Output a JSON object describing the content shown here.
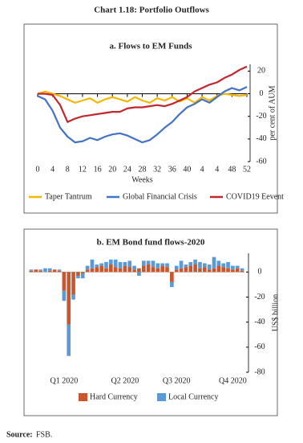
{
  "title": "Chart 1.18: Portfolio Outflows",
  "source_label": "Source:",
  "source": "FSB.",
  "chart_data": [
    {
      "type": "line",
      "title": "a. Flows to EM Funds",
      "x_label": "Weeks",
      "y_label": "per cent of AUM",
      "x": [
        0,
        2,
        4,
        6,
        8,
        10,
        12,
        14,
        16,
        18,
        20,
        22,
        24,
        26,
        28,
        30,
        32,
        34,
        36,
        38,
        40,
        42,
        44,
        46,
        48,
        50,
        52,
        54,
        56
      ],
      "xlim": [
        0,
        56
      ],
      "xticks": [
        0,
        4,
        8,
        12,
        16,
        20,
        24,
        28,
        32,
        36,
        40,
        {
          "value": 44,
          "label": "4"
        },
        {
          "value": 48,
          "label": "4"
        },
        {
          "value": 52,
          "label": "48"
        },
        {
          "value": 56,
          "label": "52"
        }
      ],
      "ylim": [
        -60,
        26
      ],
      "yticks": [
        20,
        0,
        -20,
        -40,
        -60
      ],
      "legend": "bottom",
      "series": [
        {
          "name": "Taper Tantrum",
          "color": "#f5b800",
          "values": [
            0,
            2,
            0,
            -2,
            -5,
            -8,
            -6,
            -4,
            -8,
            -5,
            -3,
            -5,
            -7,
            -3,
            -6,
            -8,
            -4,
            -6,
            -3,
            -7,
            -4,
            -8,
            -3,
            -6,
            -2,
            0,
            -1,
            -2,
            -1
          ]
        },
        {
          "name": "Global Financial Crisis",
          "color": "#4472c4",
          "values": [
            -2,
            -5,
            -15,
            -30,
            -38,
            -43,
            -42,
            -39,
            -41,
            -38,
            -36,
            -35,
            -37,
            -40,
            -43,
            -41,
            -36,
            -30,
            -25,
            -18,
            -12,
            -9,
            -5,
            -8,
            -3,
            2,
            5,
            3,
            6
          ]
        },
        {
          "name": "COVID19 Eevent",
          "color": "#c0282d",
          "values": [
            0,
            0,
            -1,
            -10,
            -25,
            -22,
            -20,
            -19,
            -18,
            -17,
            -16,
            -16,
            -13,
            -12,
            -12,
            -11,
            -10,
            -11,
            -9,
            -6,
            -3,
            2,
            5,
            8,
            10,
            14,
            17,
            21,
            24
          ]
        }
      ]
    },
    {
      "type": "bar",
      "title": "b. EM Bond fund flows-2020",
      "y_label": "US$ billion",
      "categories": [
        null,
        null,
        null,
        null,
        null,
        null,
        null,
        "Q1 2020",
        null,
        null,
        null,
        null,
        null,
        null,
        null,
        null,
        null,
        null,
        null,
        null,
        "Q2 2020",
        null,
        null,
        null,
        null,
        null,
        null,
        null,
        null,
        null,
        null,
        "Q3 2020",
        null,
        null,
        null,
        null,
        null,
        null,
        null,
        null,
        null,
        null,
        null,
        "Q4 2020",
        null,
        null
      ],
      "ylim": [
        -80,
        15
      ],
      "yticks": [
        0,
        -20,
        -40,
        -60,
        -80
      ],
      "stacked": true,
      "legend": "bottom",
      "series": [
        {
          "name": "Hard Currency",
          "color": "#c9562c",
          "values": [
            1,
            2,
            1,
            0,
            1,
            2,
            1,
            -15,
            -42,
            -18,
            -3,
            -1,
            2,
            3,
            4,
            5,
            3,
            6,
            4,
            3,
            5,
            4,
            2,
            3,
            5,
            6,
            4,
            3,
            5,
            4,
            -8,
            2,
            3,
            4,
            5,
            6,
            3,
            4,
            2,
            3,
            5,
            4,
            3,
            2,
            3,
            1
          ]
        },
        {
          "name": "Local Currency",
          "color": "#5b9bd5",
          "values": [
            1,
            0,
            1,
            3,
            2,
            0,
            1,
            -8,
            -25,
            -4,
            -2,
            -4,
            3,
            7,
            2,
            2,
            5,
            4,
            6,
            5,
            3,
            5,
            3,
            -3,
            4,
            3,
            5,
            4,
            2,
            3,
            -4,
            3,
            6,
            2,
            3,
            4,
            5,
            3,
            4,
            9,
            4,
            3,
            5,
            3,
            2,
            2
          ]
        }
      ]
    }
  ]
}
